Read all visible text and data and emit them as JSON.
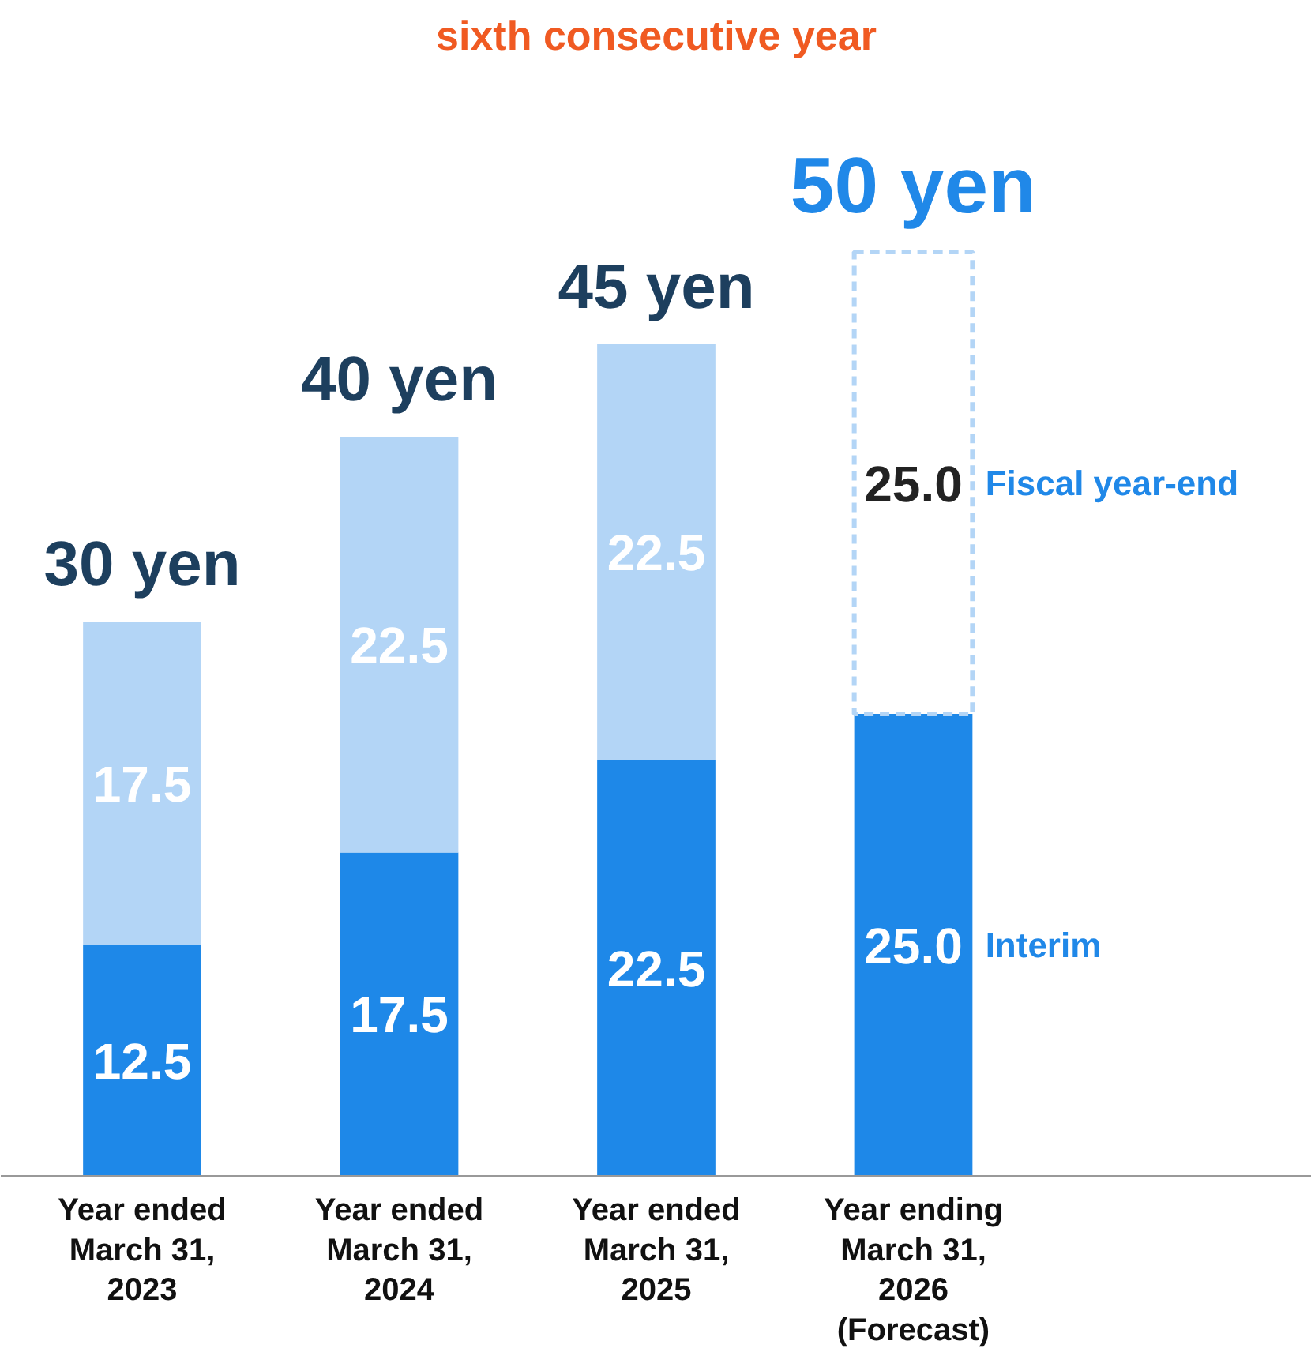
{
  "chart_data": {
    "type": "bar",
    "stacked": true,
    "title": "sixth consecutive year",
    "categories": [
      "Year ended\nMarch 31,\n2023",
      "Year ended\nMarch 31,\n2024",
      "Year ended\nMarch 31,\n2025",
      "Year ending\nMarch 31,\n2026\n(Forecast)"
    ],
    "series": [
      {
        "name": "Interim",
        "color": "#1e88e8",
        "values": [
          12.5,
          17.5,
          22.5,
          25.0
        ],
        "value_labels": [
          "12.5",
          "17.5",
          "22.5",
          "25.0"
        ]
      },
      {
        "name": "Fiscal year-end",
        "color": "#b3d5f6",
        "colors": [
          "#b3d5f6",
          "#b3d5f6",
          "#b3d5f6",
          "#ffffff"
        ],
        "values": [
          17.5,
          22.5,
          22.5,
          25.0
        ],
        "value_labels": [
          "17.5",
          "22.5",
          "22.5",
          "25.0"
        ]
      }
    ],
    "totals": [
      "30 yen",
      "40 yen",
      "45 yen",
      "50 yen"
    ],
    "grid": false,
    "legend": false
  }
}
